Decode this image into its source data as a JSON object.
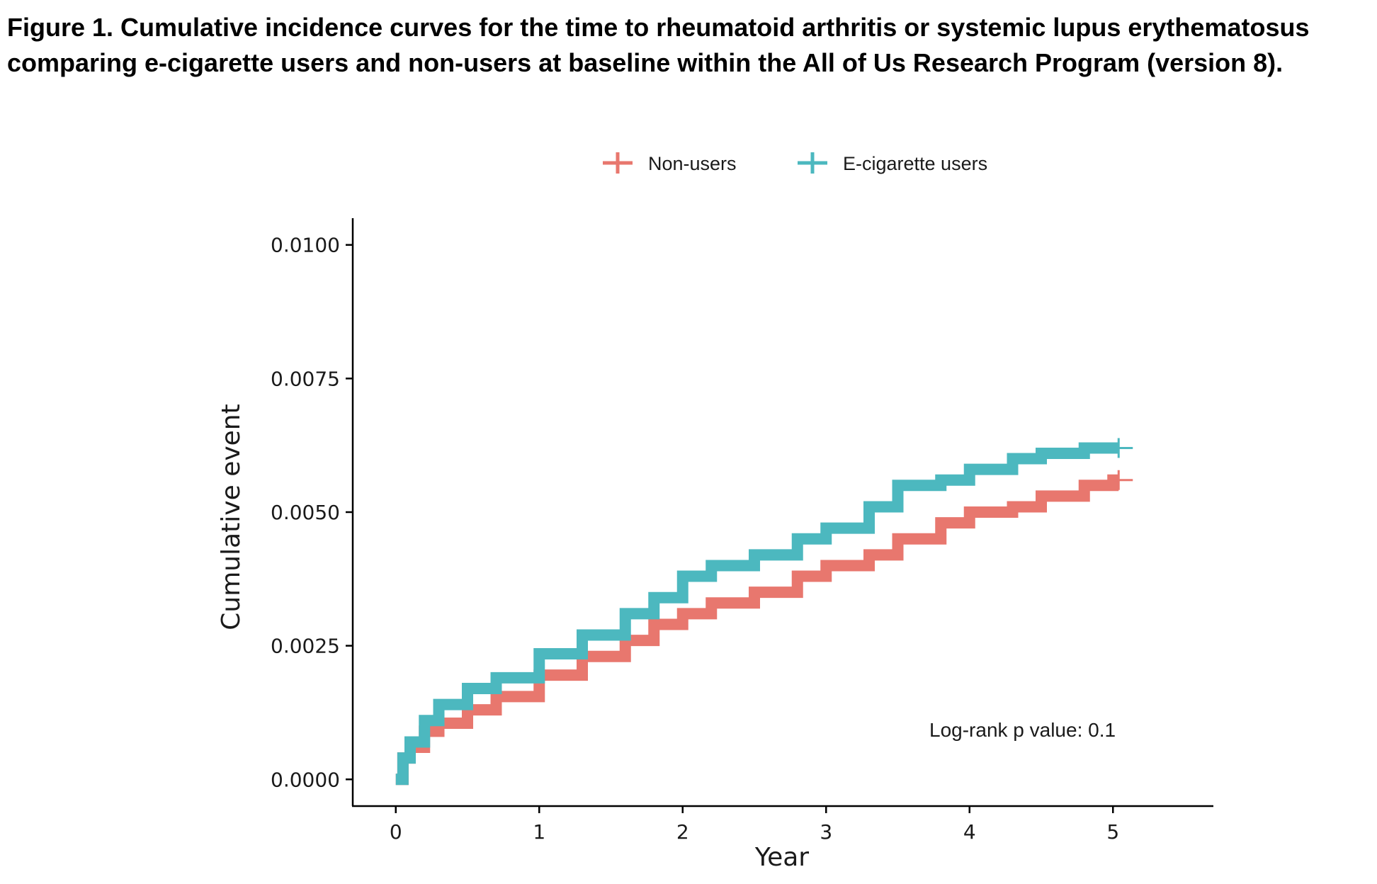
{
  "figure": {
    "caption": "Figure 1. Cumulative incidence curves for the time to rheumatoid arthritis or systemic lupus erythematosus comparing e-cigarette users and non-users at baseline within the All of Us Research Program (version 8)."
  },
  "chart_data": {
    "type": "line",
    "title": "",
    "xlabel": "Year",
    "ylabel": "Cumulative event",
    "xlim": [
      -0.3,
      5.7
    ],
    "ylim": [
      -0.0005,
      0.0105
    ],
    "x_ticks": [
      0,
      1,
      2,
      3,
      4,
      5
    ],
    "x_tick_labels": [
      "0",
      "1",
      "2",
      "3",
      "4",
      "5"
    ],
    "y_ticks": [
      0,
      0.0025,
      0.005,
      0.0075,
      0.01
    ],
    "y_tick_labels": [
      "0.0000",
      "0.0025",
      "0.0050",
      "0.0075",
      "0.0100"
    ],
    "grid": false,
    "legend_position": "top",
    "annotation": "Log-rank p value: 0.1",
    "series": [
      {
        "name": "Non-users",
        "color": "#E8776E",
        "x": [
          0,
          0.05,
          0.1,
          0.2,
          0.3,
          0.5,
          0.7,
          1.0,
          1.3,
          1.6,
          1.8,
          2.0,
          2.2,
          2.5,
          2.8,
          3.0,
          3.3,
          3.5,
          3.8,
          4.0,
          4.3,
          4.5,
          4.8,
          5.0
        ],
        "y": [
          0,
          0.0004,
          0.0006,
          0.0009,
          0.00105,
          0.0013,
          0.00155,
          0.00195,
          0.0023,
          0.0026,
          0.0029,
          0.0031,
          0.0033,
          0.0035,
          0.0038,
          0.004,
          0.0042,
          0.0045,
          0.0048,
          0.005,
          0.0051,
          0.0053,
          0.0055,
          0.0056
        ]
      },
      {
        "name": "E-cigarette users",
        "color": "#4CB8BF",
        "x": [
          0,
          0.05,
          0.1,
          0.2,
          0.3,
          0.5,
          0.7,
          1.0,
          1.3,
          1.6,
          1.8,
          2.0,
          2.2,
          2.5,
          2.8,
          3.0,
          3.3,
          3.5,
          3.8,
          4.0,
          4.3,
          4.5,
          4.8,
          5.0
        ],
        "y": [
          0,
          0.0004,
          0.0007,
          0.0011,
          0.0014,
          0.0017,
          0.0019,
          0.00235,
          0.0027,
          0.0031,
          0.0034,
          0.0038,
          0.004,
          0.0042,
          0.0045,
          0.0047,
          0.0051,
          0.0055,
          0.0056,
          0.0058,
          0.006,
          0.0061,
          0.0062,
          0.0062
        ]
      }
    ]
  }
}
